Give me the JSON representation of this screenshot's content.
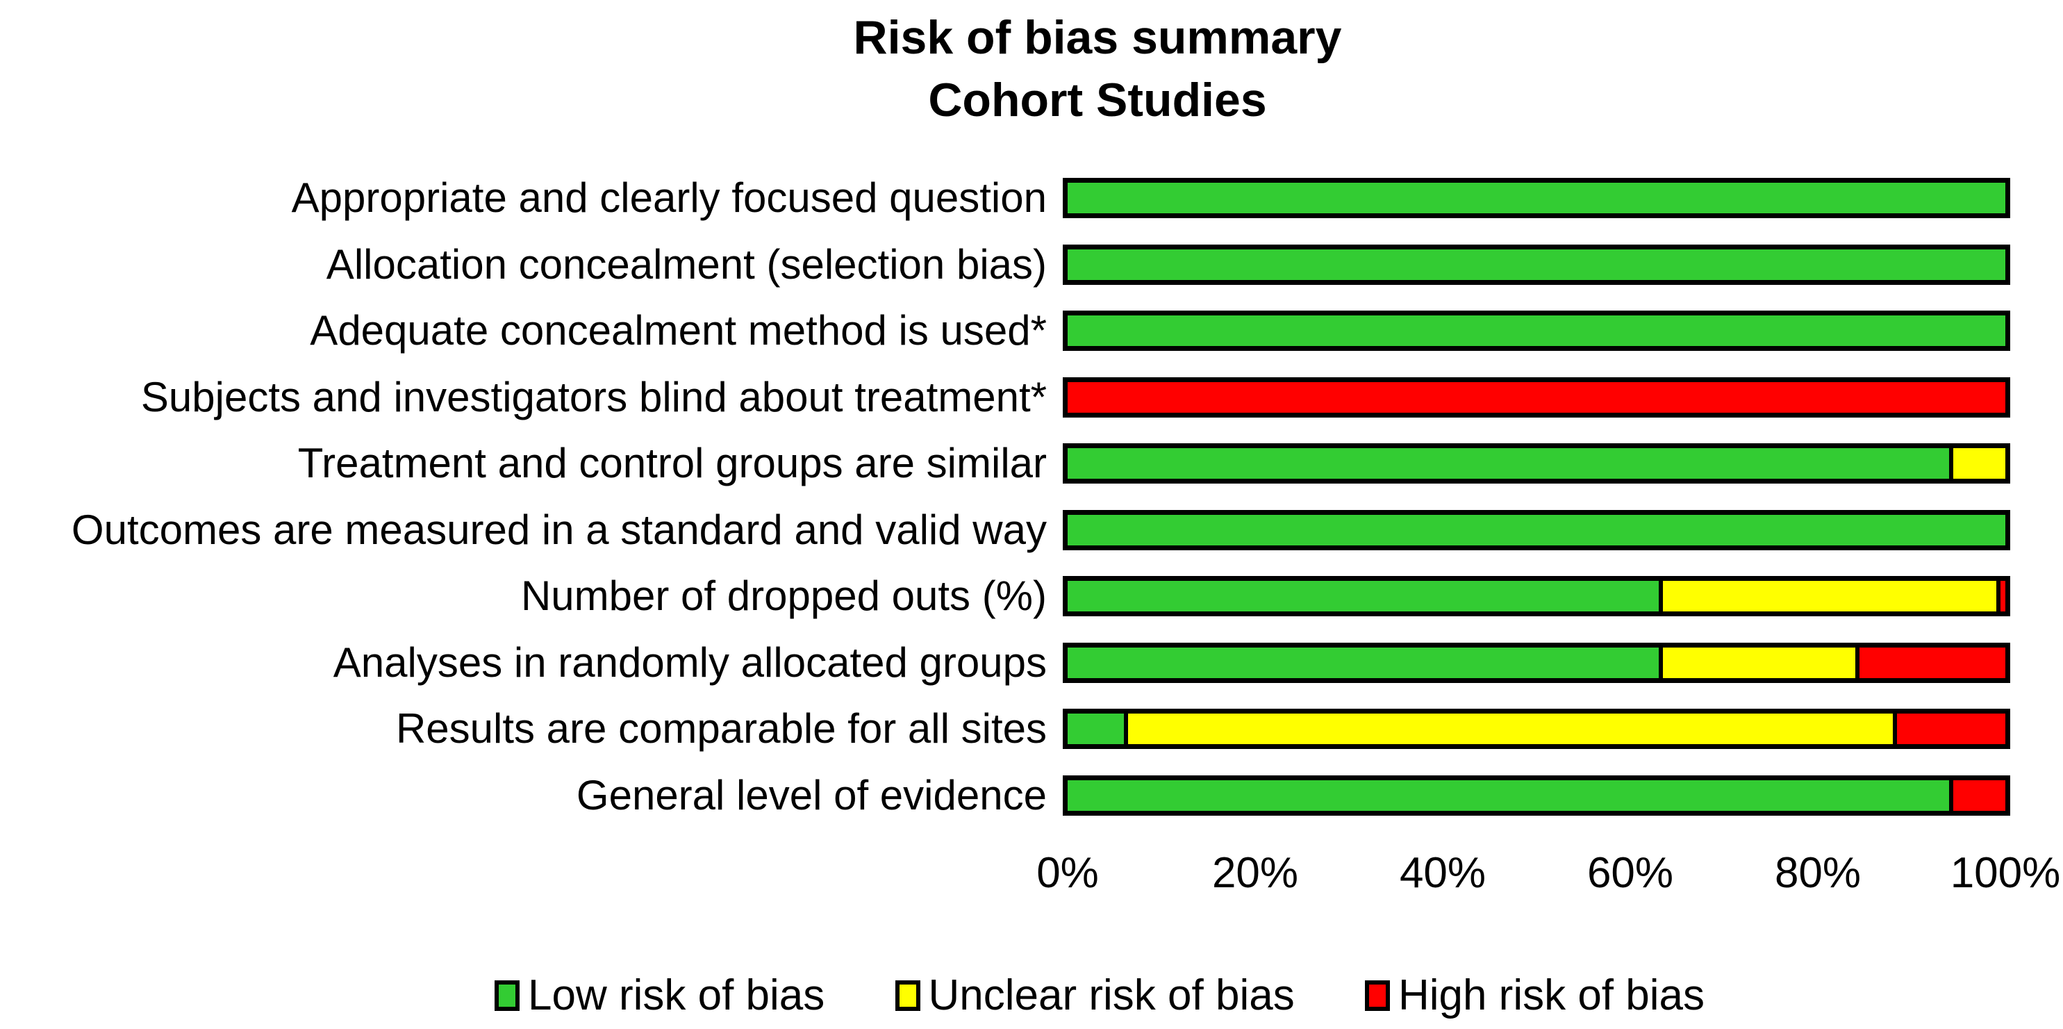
{
  "title": "Risk of bias summary",
  "subtitle": "Cohort Studies",
  "colors": {
    "low": "#33CC33",
    "unclear": "#FFFF00",
    "high": "#FF0000",
    "outline": "#000000"
  },
  "chart_data": {
    "type": "bar",
    "orientation": "horizontal",
    "stacked": true,
    "grid": false,
    "title": "Risk of bias summary",
    "subtitle": "Cohort Studies",
    "xlabel": "",
    "ylabel": "",
    "x_axis": {
      "min": 0,
      "max": 100,
      "unit": "%",
      "ticks": [
        {
          "value": 0,
          "label": "0%"
        },
        {
          "value": 20,
          "label": "20%"
        },
        {
          "value": 40,
          "label": "40%"
        },
        {
          "value": 60,
          "label": "60%"
        },
        {
          "value": 80,
          "label": "80%"
        },
        {
          "value": 100,
          "label": "100%"
        }
      ]
    },
    "categories": [
      "Appropriate and clearly focused question",
      "Allocation concealment (selection bias)",
      "Adequate concealment method is used*",
      "Subjects and investigators blind about treatment*",
      "Treatment and control groups are similar",
      "Outcomes are measured in a standard and valid way",
      "Number of dropped outs (%)",
      "Analyses in randomly allocated groups",
      "Results are comparable for all sites",
      "General level of evidence"
    ],
    "series": [
      {
        "name": "Low risk of bias",
        "key": "low",
        "color": "#33CC33",
        "values": [
          100,
          100,
          100,
          0,
          94,
          100,
          63,
          63,
          6,
          94
        ]
      },
      {
        "name": "Unclear risk of bias",
        "key": "unclear",
        "color": "#FFFF00",
        "values": [
          0,
          0,
          0,
          0,
          6,
          0,
          36,
          21,
          82,
          0
        ]
      },
      {
        "name": "High risk of bias",
        "key": "high",
        "color": "#FF0000",
        "values": [
          0,
          0,
          0,
          100,
          0,
          0,
          1,
          16,
          12,
          6
        ]
      }
    ],
    "legend": {
      "position": "bottom",
      "entries": [
        "Low risk of bias",
        "Unclear risk of bias",
        "High risk of bias"
      ]
    }
  },
  "layout_note_values_are_percent_of_bar": true
}
